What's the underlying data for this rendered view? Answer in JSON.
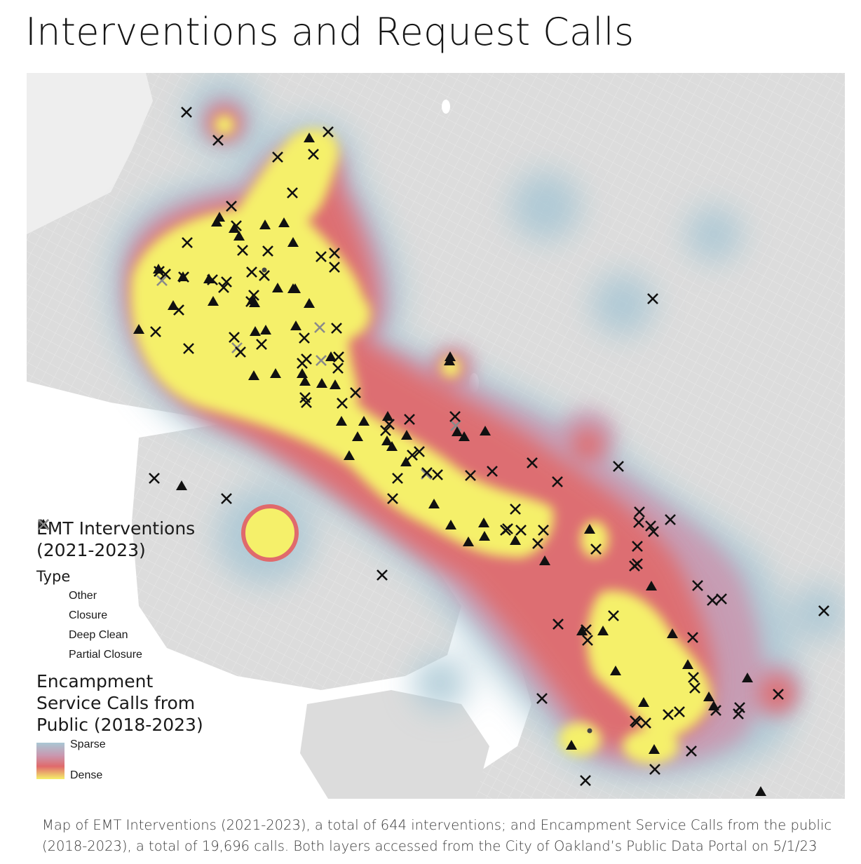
{
  "title": "Interventions and Request Calls",
  "legend": {
    "emt_title_line1": "EMT Interventions",
    "emt_title_line2": "(2021-2023)",
    "type_title": "Type",
    "types": [
      {
        "label": "Other",
        "icon": "dot-icon"
      },
      {
        "label": "Closure",
        "icon": "x-icon"
      },
      {
        "label": "Deep Clean",
        "icon": "triangle-icon"
      },
      {
        "label": "Partial Closure",
        "icon": "gray-x-icon"
      }
    ],
    "calls_title_line1": "Encampment",
    "calls_title_line2": "Service Calls from",
    "calls_title_line3": "Public (2018-2023)",
    "ramp_low": "Sparse",
    "ramp_high": "Dense"
  },
  "colors": {
    "land": "#dcdcdc",
    "water": "#ffffff",
    "sparse": "#a9c7d4",
    "mid": "#c998b0",
    "hot": "#e06a6c",
    "dense": "#f5f06a",
    "marker": "#111111",
    "partial_marker": "#888888"
  },
  "caption": "Map of EMT Interventions (2021-2023), a total of 644 interventions; and Encampment Service Calls from the public (2018-2023), a total of 19,696 calls. Both layers accessed from the City of Oakland’s Public Data Portal on 5/1/23"
}
